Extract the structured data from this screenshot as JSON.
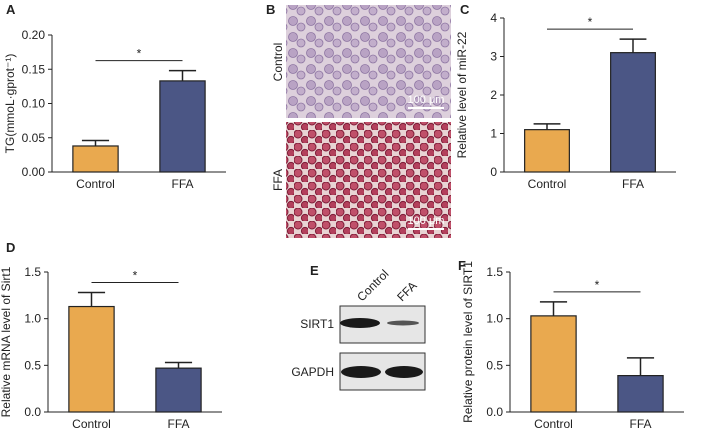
{
  "chart_data": [
    {
      "type": "bar",
      "panel": "A",
      "ylabel": "TG(mmoL·gprot⁻¹)",
      "categories": [
        "Control",
        "FFA"
      ],
      "values": [
        0.038,
        0.133
      ],
      "errors": [
        0.008,
        0.015
      ],
      "colors": [
        "#e9a94f",
        "#4b5685"
      ],
      "ylim": [
        0,
        0.2
      ],
      "yticks": [
        {
          "value": 0,
          "label": "0.00"
        },
        {
          "value": 0.05,
          "label": "0.05"
        },
        {
          "value": 0.1,
          "label": "0.10"
        },
        {
          "value": 0.15,
          "label": "0.15"
        },
        {
          "value": 0.2,
          "label": "0.20"
        }
      ],
      "significance": "*"
    },
    {
      "type": "bar",
      "panel": "C",
      "ylabel": "Relative level of miR-22",
      "categories": [
        "Control",
        "FFA"
      ],
      "values": [
        1.1,
        3.1
      ],
      "errors": [
        0.15,
        0.35
      ],
      "colors": [
        "#e9a94f",
        "#4b5685"
      ],
      "ylim": [
        0,
        4
      ],
      "yticks": [
        0,
        1,
        2,
        3,
        4
      ],
      "significance": "*"
    },
    {
      "type": "bar",
      "panel": "D",
      "ylabel": "Relative mRNA level of Sirt1",
      "categories": [
        "Control",
        "FFA"
      ],
      "values": [
        1.13,
        0.47
      ],
      "errors": [
        0.15,
        0.06
      ],
      "colors": [
        "#e9a94f",
        "#4b5685"
      ],
      "ylim": [
        0,
        1.5
      ],
      "yticks": [
        {
          "value": 0,
          "label": "0.0"
        },
        {
          "value": 0.5,
          "label": "0.5"
        },
        {
          "value": 1,
          "label": "1.0"
        },
        {
          "value": 1.5,
          "label": "1.5"
        }
      ],
      "significance": "*"
    },
    {
      "type": "bar",
      "panel": "F",
      "ylabel": "Relative protein level of SIRT1",
      "categories": [
        "Control",
        "FFA"
      ],
      "values": [
        1.03,
        0.39
      ],
      "errors": [
        0.15,
        0.19
      ],
      "colors": [
        "#e9a94f",
        "#4b5685"
      ],
      "ylim": [
        0,
        1.5
      ],
      "yticks": [
        {
          "value": 0,
          "label": "0.0"
        },
        {
          "value": 0.5,
          "label": "0.5"
        },
        {
          "value": 1,
          "label": "1.0"
        },
        {
          "value": 1.5,
          "label": "1.5"
        }
      ],
      "significance": "*"
    }
  ],
  "micrographs": {
    "panel": "B",
    "rows": [
      "Control",
      "FFA"
    ],
    "scale_bars": [
      "100 μm",
      "100 μm"
    ]
  },
  "western_blot": {
    "panel": "E",
    "lanes": [
      "Control",
      "FFA"
    ],
    "bands": [
      "SIRT1",
      "GAPDH"
    ]
  }
}
